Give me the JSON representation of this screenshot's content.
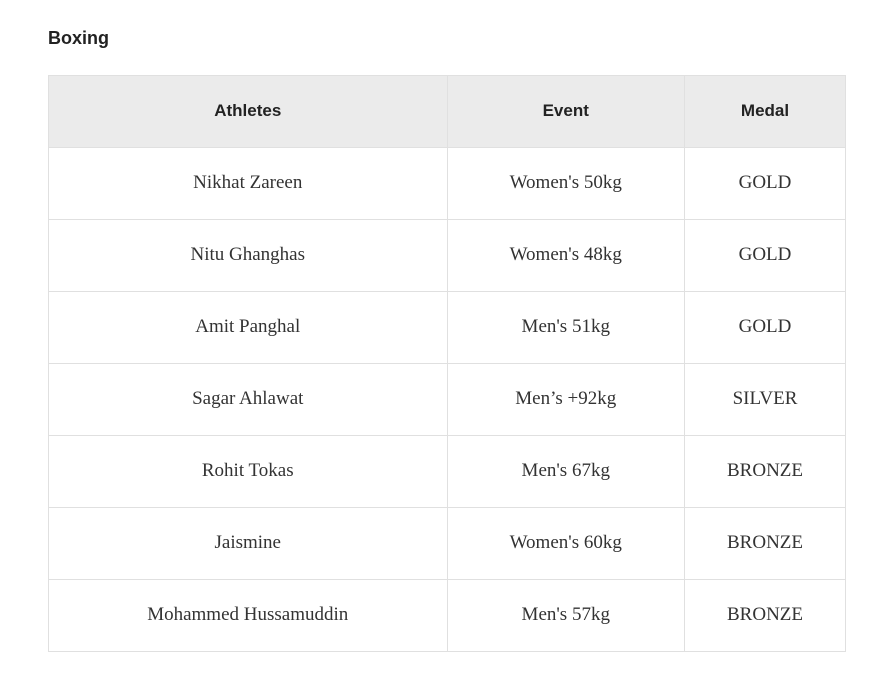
{
  "page": {
    "heading": "Boxing"
  },
  "table": {
    "columns": [
      {
        "label": "Athletes"
      },
      {
        "label": "Event"
      },
      {
        "label": "Medal"
      }
    ],
    "rows": [
      {
        "athlete": "Nikhat Zareen",
        "event": "Women's 50kg",
        "medal": "GOLD"
      },
      {
        "athlete": "Nitu Ghanghas",
        "event": "Women's 48kg",
        "medal": "GOLD"
      },
      {
        "athlete": "Amit Panghal",
        "event": "Men's 51kg",
        "medal": "GOLD"
      },
      {
        "athlete": "Sagar Ahlawat",
        "event": "Men’s +92kg",
        "medal": "SILVER"
      },
      {
        "athlete": "Rohit Tokas",
        "event": "Men's 67kg",
        "medal": "BRONZE"
      },
      {
        "athlete": "Jaismine",
        "event": "Women's 60kg",
        "medal": "BRONZE"
      },
      {
        "athlete": "Mohammed Hussamuddin",
        "event": "Men's 57kg",
        "medal": "BRONZE"
      }
    ],
    "colors": {
      "header_bg": "#ebebeb",
      "border": "#e0e0e0",
      "header_text": "#222222",
      "body_text": "#333333"
    }
  }
}
